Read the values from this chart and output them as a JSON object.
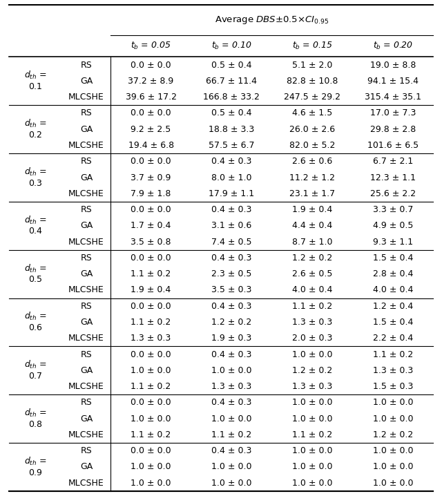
{
  "title": "Average $DBS$±0.5×$CI_{0.95}$",
  "col_headers": [
    "$t_b$ = 0.05",
    "$t_b$ = 0.10",
    "$t_b$ = 0.15",
    "$t_b$ = 0.20"
  ],
  "row_groups": [
    {
      "dth": "0.1",
      "rows": [
        {
          "method": "RS",
          "values": [
            "0.0 ± 0.0",
            "0.5 ± 0.4",
            "5.1 ± 2.0",
            "19.0 ± 8.8"
          ]
        },
        {
          "method": "GA",
          "values": [
            "37.2 ± 8.9",
            "66.7 ± 11.4",
            "82.8 ± 10.8",
            "94.1 ± 15.4"
          ]
        },
        {
          "method": "MLCSHE",
          "values": [
            "39.6 ± 17.2",
            "166.8 ± 33.2",
            "247.5 ± 29.2",
            "315.4 ± 35.1"
          ]
        }
      ]
    },
    {
      "dth": "0.2",
      "rows": [
        {
          "method": "RS",
          "values": [
            "0.0 ± 0.0",
            "0.5 ± 0.4",
            "4.6 ± 1.5",
            "17.0 ± 7.3"
          ]
        },
        {
          "method": "GA",
          "values": [
            "9.2 ± 2.5",
            "18.8 ± 3.3",
            "26.0 ± 2.6",
            "29.8 ± 2.8"
          ]
        },
        {
          "method": "MLCSHE",
          "values": [
            "19.4 ± 6.8",
            "57.5 ± 6.7",
            "82.0 ± 5.2",
            "101.6 ± 6.5"
          ]
        }
      ]
    },
    {
      "dth": "0.3",
      "rows": [
        {
          "method": "RS",
          "values": [
            "0.0 ± 0.0",
            "0.4 ± 0.3",
            "2.6 ± 0.6",
            "6.7 ± 2.1"
          ]
        },
        {
          "method": "GA",
          "values": [
            "3.7 ± 0.9",
            "8.0 ± 1.0",
            "11.2 ± 1.2",
            "12.3 ± 1.1"
          ]
        },
        {
          "method": "MLCSHE",
          "values": [
            "7.9 ± 1.8",
            "17.9 ± 1.1",
            "23.1 ± 1.7",
            "25.6 ± 2.2"
          ]
        }
      ]
    },
    {
      "dth": "0.4",
      "rows": [
        {
          "method": "RS",
          "values": [
            "0.0 ± 0.0",
            "0.4 ± 0.3",
            "1.9 ± 0.4",
            "3.3 ± 0.7"
          ]
        },
        {
          "method": "GA",
          "values": [
            "1.7 ± 0.4",
            "3.1 ± 0.6",
            "4.4 ± 0.4",
            "4.9 ± 0.5"
          ]
        },
        {
          "method": "MLCSHE",
          "values": [
            "3.5 ± 0.8",
            "7.4 ± 0.5",
            "8.7 ± 1.0",
            "9.3 ± 1.1"
          ]
        }
      ]
    },
    {
      "dth": "0.5",
      "rows": [
        {
          "method": "RS",
          "values": [
            "0.0 ± 0.0",
            "0.4 ± 0.3",
            "1.2 ± 0.2",
            "1.5 ± 0.4"
          ]
        },
        {
          "method": "GA",
          "values": [
            "1.1 ± 0.2",
            "2.3 ± 0.5",
            "2.6 ± 0.5",
            "2.8 ± 0.4"
          ]
        },
        {
          "method": "MLCSHE",
          "values": [
            "1.9 ± 0.4",
            "3.5 ± 0.3",
            "4.0 ± 0.4",
            "4.0 ± 0.4"
          ]
        }
      ]
    },
    {
      "dth": "0.6",
      "rows": [
        {
          "method": "RS",
          "values": [
            "0.0 ± 0.0",
            "0.4 ± 0.3",
            "1.1 ± 0.2",
            "1.2 ± 0.4"
          ]
        },
        {
          "method": "GA",
          "values": [
            "1.1 ± 0.2",
            "1.2 ± 0.2",
            "1.3 ± 0.3",
            "1.5 ± 0.4"
          ]
        },
        {
          "method": "MLCSHE",
          "values": [
            "1.3 ± 0.3",
            "1.9 ± 0.3",
            "2.0 ± 0.3",
            "2.2 ± 0.4"
          ]
        }
      ]
    },
    {
      "dth": "0.7",
      "rows": [
        {
          "method": "RS",
          "values": [
            "0.0 ± 0.0",
            "0.4 ± 0.3",
            "1.0 ± 0.0",
            "1.1 ± 0.2"
          ]
        },
        {
          "method": "GA",
          "values": [
            "1.0 ± 0.0",
            "1.0 ± 0.0",
            "1.2 ± 0.2",
            "1.3 ± 0.3"
          ]
        },
        {
          "method": "MLCSHE",
          "values": [
            "1.1 ± 0.2",
            "1.3 ± 0.3",
            "1.3 ± 0.3",
            "1.5 ± 0.3"
          ]
        }
      ]
    },
    {
      "dth": "0.8",
      "rows": [
        {
          "method": "RS",
          "values": [
            "0.0 ± 0.0",
            "0.4 ± 0.3",
            "1.0 ± 0.0",
            "1.0 ± 0.0"
          ]
        },
        {
          "method": "GA",
          "values": [
            "1.0 ± 0.0",
            "1.0 ± 0.0",
            "1.0 ± 0.0",
            "1.0 ± 0.0"
          ]
        },
        {
          "method": "MLCSHE",
          "values": [
            "1.1 ± 0.2",
            "1.1 ± 0.2",
            "1.1 ± 0.2",
            "1.2 ± 0.2"
          ]
        }
      ]
    },
    {
      "dth": "0.9",
      "rows": [
        {
          "method": "RS",
          "values": [
            "0.0 ± 0.0",
            "0.4 ± 0.3",
            "1.0 ± 0.0",
            "1.0 ± 0.0"
          ]
        },
        {
          "method": "GA",
          "values": [
            "1.0 ± 0.0",
            "1.0 ± 0.0",
            "1.0 ± 0.0",
            "1.0 ± 0.0"
          ]
        },
        {
          "method": "MLCSHE",
          "values": [
            "1.0 ± 0.0",
            "1.0 ± 0.0",
            "1.0 ± 0.0",
            "1.0 ± 0.0"
          ]
        }
      ]
    }
  ],
  "fig_width": 6.4,
  "fig_height": 7.18,
  "dpi": 100
}
